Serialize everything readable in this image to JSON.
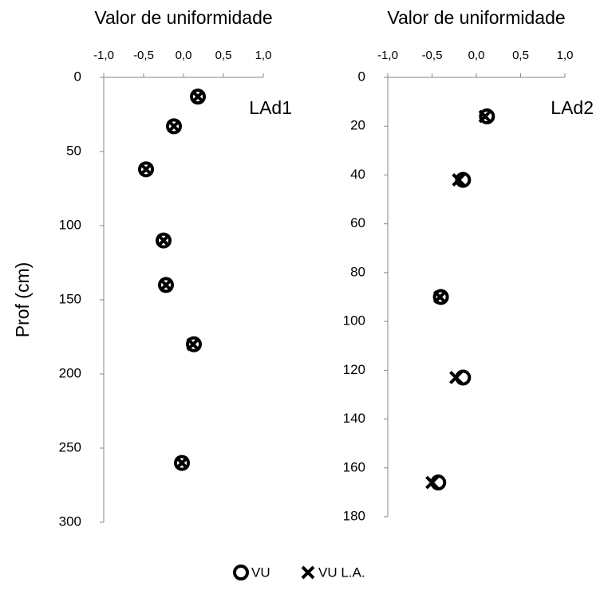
{
  "chart_data": [
    {
      "type": "scatter",
      "title": "Valor de uniformidade",
      "ylabel": "Prof (cm)",
      "annotation": "LAd1",
      "xlim": [
        -1.0,
        1.0
      ],
      "xticks": [
        {
          "value": -1.0,
          "label": "-1,0"
        },
        {
          "value": -0.5,
          "label": "-0,5"
        },
        {
          "value": 0.0,
          "label": "0,0"
        },
        {
          "value": 0.5,
          "label": "0,5"
        },
        {
          "value": 1.0,
          "label": "1,0"
        }
      ],
      "ylim": [
        0,
        300
      ],
      "yticks": [
        0,
        50,
        100,
        150,
        200,
        250,
        300
      ],
      "yinverted": true,
      "series": [
        {
          "name": "VU",
          "color": "#000000",
          "marker": "o",
          "x": [
            0.18,
            -0.12,
            -0.47,
            -0.25,
            -0.22,
            0.13,
            -0.02
          ],
          "values": [
            13,
            33,
            62,
            110,
            140,
            180,
            260
          ]
        },
        {
          "name": "VU L.A.",
          "color": "#000000",
          "marker": "x",
          "x": [
            0.18,
            -0.12,
            -0.47,
            -0.25,
            -0.22,
            0.12,
            -0.02
          ],
          "values": [
            13,
            33,
            62,
            110,
            140,
            180,
            260
          ]
        }
      ]
    },
    {
      "type": "scatter",
      "title": "Valor de uniformidade",
      "annotation": "LAd2",
      "xlim": [
        -1.0,
        1.0
      ],
      "xticks": [
        {
          "value": -1.0,
          "label": "-1,0"
        },
        {
          "value": -0.5,
          "label": "-0,5"
        },
        {
          "value": 0.0,
          "label": "0,0"
        },
        {
          "value": 0.5,
          "label": "0,5"
        },
        {
          "value": 1.0,
          "label": "1,0"
        }
      ],
      "ylim": [
        0,
        180
      ],
      "yticks": [
        0,
        20,
        40,
        60,
        80,
        100,
        120,
        140,
        160,
        180
      ],
      "yinverted": true,
      "series": [
        {
          "name": "VU",
          "color": "#000000",
          "marker": "o",
          "x": [
            0.12,
            -0.15,
            -0.4,
            -0.15,
            -0.43
          ],
          "values": [
            16,
            42,
            90,
            123,
            166
          ]
        },
        {
          "name": "VU L.A.",
          "color": "#000000",
          "marker": "x",
          "x": [
            0.1,
            -0.2,
            -0.41,
            -0.23,
            -0.5
          ],
          "values": [
            16,
            42,
            90,
            123,
            166
          ]
        }
      ]
    }
  ]
}
